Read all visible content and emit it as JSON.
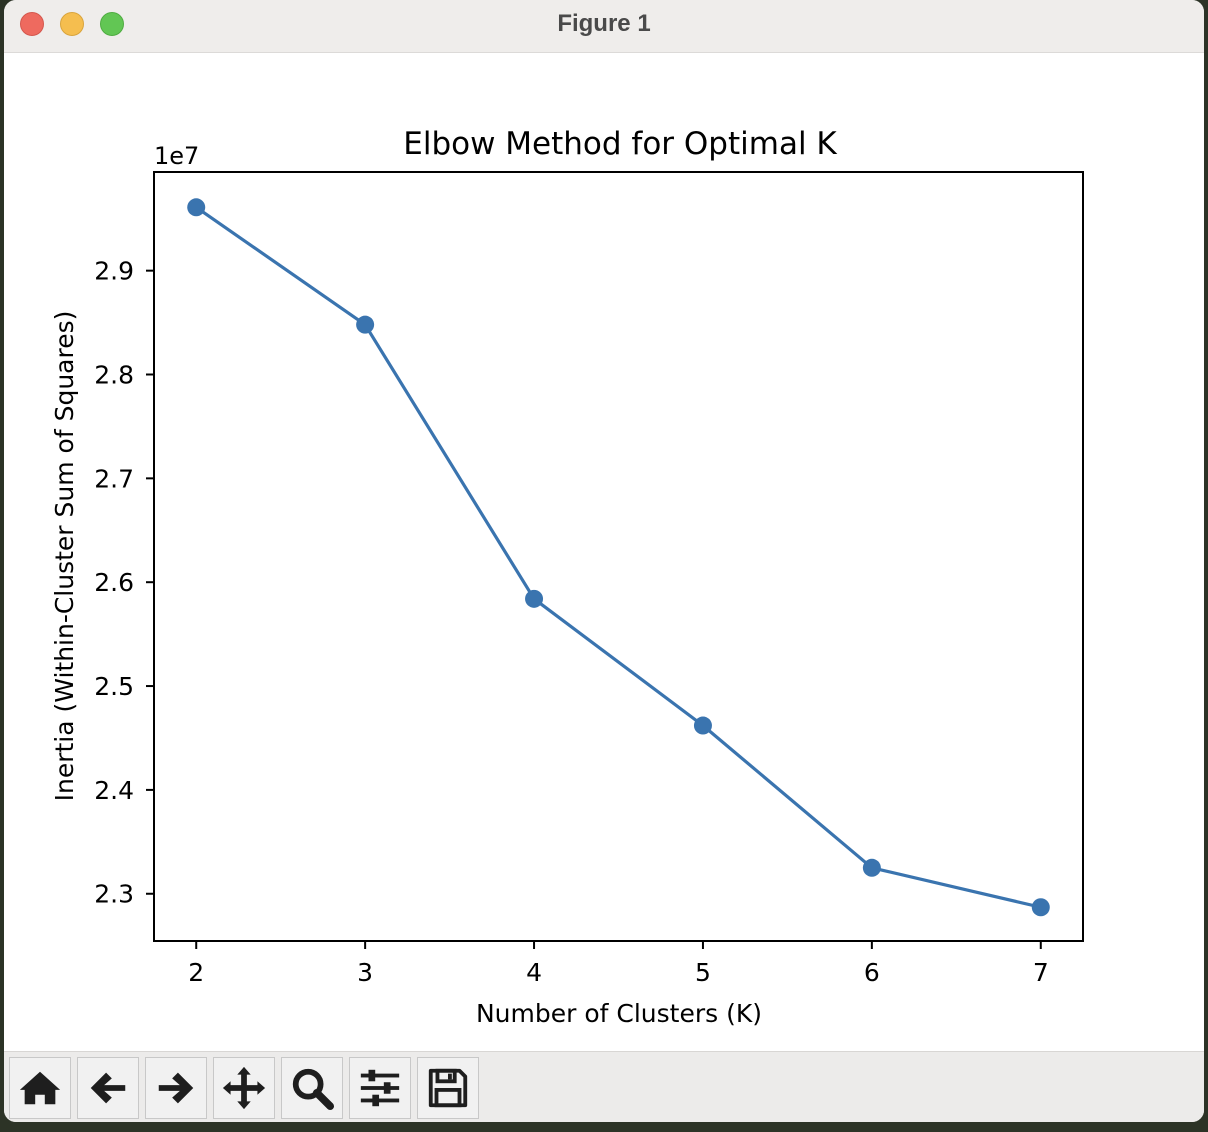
{
  "window": {
    "title": "Figure 1"
  },
  "toolbar": {
    "buttons": [
      {
        "name": "home-icon"
      },
      {
        "name": "back-arrow-icon"
      },
      {
        "name": "forward-arrow-icon"
      },
      {
        "name": "pan-move-icon"
      },
      {
        "name": "zoom-magnifier-icon"
      },
      {
        "name": "configure-subplots-icon"
      },
      {
        "name": "save-floppy-icon"
      }
    ]
  },
  "chart_data": {
    "type": "line",
    "title": "Elbow Method for Optimal K",
    "xlabel": "Number of Clusters (K)",
    "ylabel": "Inertia (Within-Cluster Sum of Squares)",
    "offset_label": "1e7",
    "x": [
      2,
      3,
      4,
      5,
      6,
      7
    ],
    "series": [
      {
        "values": [
          2.961,
          2.848,
          2.584,
          2.462,
          2.325,
          2.287
        ],
        "marker": "o",
        "color": "#3a74af"
      }
    ],
    "xlim": [
      1.75,
      7.25
    ],
    "ylim": [
      2.2545,
      2.995
    ],
    "xticks": [
      "2",
      "3",
      "4",
      "5",
      "6",
      "7"
    ],
    "yticks": [
      "2.3",
      "2.4",
      "2.5",
      "2.6",
      "2.7",
      "2.8",
      "2.9"
    ],
    "ytick_values": [
      2.3,
      2.4,
      2.5,
      2.6,
      2.7,
      2.8,
      2.9
    ],
    "grid": false
  }
}
